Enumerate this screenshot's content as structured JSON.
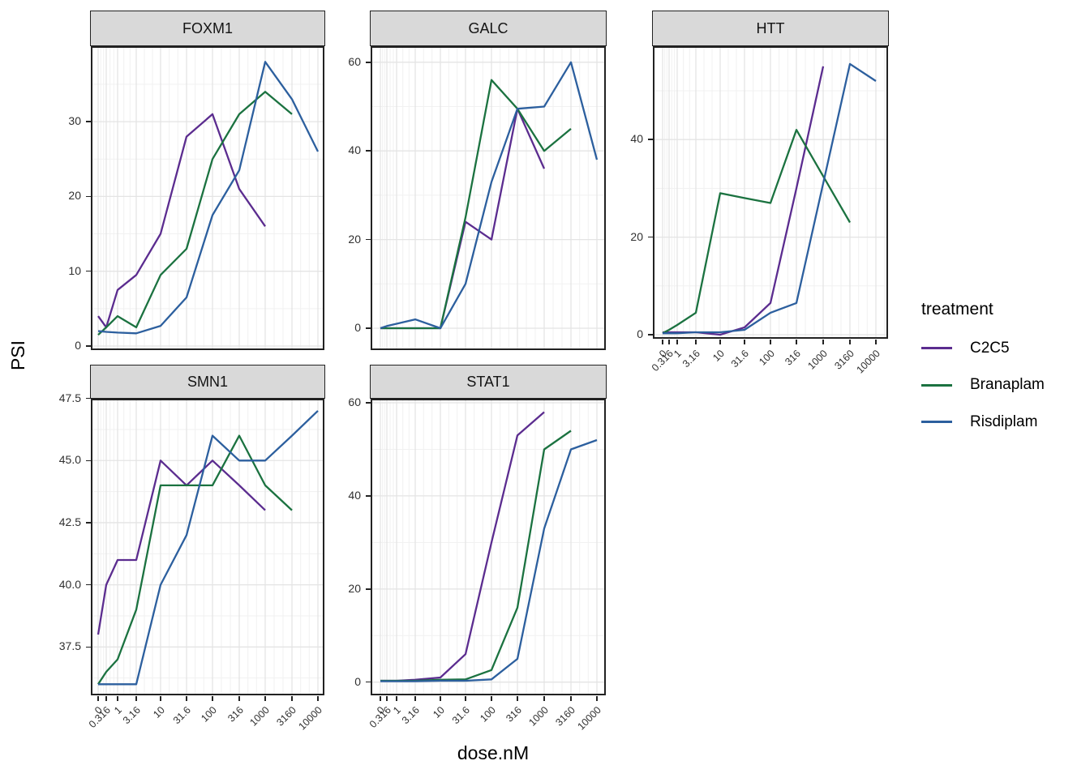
{
  "axes": {
    "x_label": "dose.nM",
    "y_label": "PSI"
  },
  "legend": {
    "title": "treatment",
    "entries": [
      {
        "label": "C2C5",
        "color": "#5B2C8F"
      },
      {
        "label": "Branaplam",
        "color": "#1B7240"
      },
      {
        "label": "Risdiplam",
        "color": "#2C5F9E"
      }
    ]
  },
  "x_doses": [
    0,
    0.316,
    1,
    3.16,
    10,
    31.6,
    100,
    316,
    1000,
    3160,
    10000
  ],
  "x_tick_labels": [
    "0",
    "0.316",
    "1",
    "3.16",
    "10",
    "31.6",
    "100",
    "316",
    "1000",
    "3160",
    "10000"
  ],
  "chart_data": [
    {
      "type": "line",
      "facet": "FOXM1",
      "x_scale": "pseudo-log",
      "xlabel": "dose.nM",
      "ylabel": "PSI",
      "y_ticks": [
        0,
        10,
        20,
        30
      ],
      "grid": "on",
      "series": [
        {
          "name": "C2C5",
          "x": [
            0,
            0.316,
            1,
            3.16,
            10,
            31.6,
            100,
            316,
            1000
          ],
          "y": [
            4,
            2.5,
            7.5,
            9.5,
            15,
            28,
            31,
            21,
            16
          ]
        },
        {
          "name": "Branaplam",
          "x": [
            0,
            0.316,
            1,
            3.16,
            10,
            31.6,
            100,
            316,
            1000,
            3160
          ],
          "y": [
            1.5,
            2.5,
            4,
            2.5,
            9.5,
            13,
            25,
            31,
            34,
            31
          ]
        },
        {
          "name": "Risdiplam",
          "x": [
            0,
            0.316,
            1,
            3.16,
            10,
            31.6,
            100,
            316,
            1000,
            3160,
            10000
          ],
          "y": [
            2,
            1.9,
            1.8,
            1.7,
            2.7,
            6.5,
            17.5,
            23.5,
            38,
            33,
            26
          ]
        }
      ]
    },
    {
      "type": "line",
      "facet": "GALC",
      "x_scale": "pseudo-log",
      "xlabel": "dose.nM",
      "ylabel": "PSI",
      "y_ticks": [
        0,
        20,
        40,
        60
      ],
      "grid": "on",
      "series": [
        {
          "name": "C2C5",
          "x": [
            0,
            0.316,
            1,
            3.16,
            10,
            31.6,
            100,
            316,
            1000
          ],
          "y": [
            0,
            0,
            0,
            0,
            0,
            24,
            20,
            49.5,
            36
          ]
        },
        {
          "name": "Branaplam",
          "x": [
            0,
            0.316,
            1,
            3.16,
            10,
            31.6,
            100,
            316,
            1000,
            3160
          ],
          "y": [
            0,
            0,
            0,
            0,
            0,
            25,
            56,
            49.5,
            40,
            45
          ]
        },
        {
          "name": "Risdiplam",
          "x": [
            0,
            0.316,
            1,
            3.16,
            10,
            31.6,
            100,
            316,
            1000,
            3160,
            10000
          ],
          "y": [
            0,
            0.5,
            1,
            2,
            0,
            10,
            33,
            49.5,
            50,
            60,
            38
          ]
        }
      ]
    },
    {
      "type": "line",
      "facet": "HTT",
      "x_scale": "pseudo-log",
      "xlabel": "dose.nM",
      "ylabel": "PSI",
      "y_ticks": [
        0,
        20,
        40
      ],
      "grid": "on",
      "series": [
        {
          "name": "C2C5",
          "x": [
            0,
            0.316,
            1,
            3.16,
            10,
            31.6,
            100,
            316,
            1000
          ],
          "y": [
            0.5,
            0.5,
            0.5,
            0.5,
            0,
            1.5,
            6.5,
            30,
            55
          ]
        },
        {
          "name": "Branaplam",
          "x": [
            0,
            0.316,
            1,
            3.16,
            10,
            31.6,
            100,
            316,
            1000,
            3160
          ],
          "y": [
            0.3,
            1,
            2,
            4.5,
            29,
            28,
            27,
            42,
            32.5,
            23
          ]
        },
        {
          "name": "Risdiplam",
          "x": [
            0,
            0.316,
            1,
            3.16,
            10,
            31.6,
            100,
            316,
            1000,
            3160,
            10000
          ],
          "y": [
            0.3,
            0.3,
            0.3,
            0.5,
            0.5,
            1,
            4.5,
            6.5,
            31,
            55.5,
            52
          ]
        }
      ]
    },
    {
      "type": "line",
      "facet": "SMN1",
      "x_scale": "pseudo-log",
      "xlabel": "dose.nM",
      "ylabel": "PSI",
      "y_ticks": [
        37.5,
        40.0,
        42.5,
        45.0,
        47.5
      ],
      "grid": "on",
      "series": [
        {
          "name": "C2C5",
          "x": [
            0,
            0.316,
            1,
            3.16,
            10,
            31.6,
            100,
            316,
            1000
          ],
          "y": [
            38,
            40,
            41,
            41,
            45,
            44,
            45,
            44,
            43
          ]
        },
        {
          "name": "Branaplam",
          "x": [
            0,
            0.316,
            1,
            3.16,
            10,
            31.6,
            100,
            316,
            1000,
            3160
          ],
          "y": [
            36,
            36.5,
            37,
            39,
            44,
            44,
            44,
            46,
            44,
            43
          ]
        },
        {
          "name": "Risdiplam",
          "x": [
            0,
            0.316,
            1,
            3.16,
            10,
            31.6,
            100,
            316,
            1000,
            3160,
            10000
          ],
          "y": [
            36,
            36,
            36,
            36,
            40,
            42,
            46,
            45,
            45,
            46,
            47
          ]
        }
      ]
    },
    {
      "type": "line",
      "facet": "STAT1",
      "x_scale": "pseudo-log",
      "xlabel": "dose.nM",
      "ylabel": "PSI",
      "y_ticks": [
        0,
        20,
        40,
        60
      ],
      "grid": "on",
      "series": [
        {
          "name": "C2C5",
          "x": [
            0,
            0.316,
            1,
            3.16,
            10,
            31.6,
            100,
            316,
            1000
          ],
          "y": [
            0.3,
            0.3,
            0.3,
            0.5,
            1,
            6,
            30,
            53,
            58
          ]
        },
        {
          "name": "Branaplam",
          "x": [
            0,
            0.316,
            1,
            3.16,
            10,
            31.6,
            100,
            316,
            1000,
            3160
          ],
          "y": [
            0.3,
            0.3,
            0.3,
            0.3,
            0.5,
            0.6,
            2.6,
            16,
            50,
            54
          ]
        },
        {
          "name": "Risdiplam",
          "x": [
            0,
            0.316,
            1,
            3.16,
            10,
            31.6,
            100,
            316,
            1000,
            3160,
            10000
          ],
          "y": [
            0.2,
            0.2,
            0.2,
            0.2,
            0.3,
            0.3,
            0.6,
            5,
            33,
            50,
            52
          ]
        }
      ]
    }
  ]
}
